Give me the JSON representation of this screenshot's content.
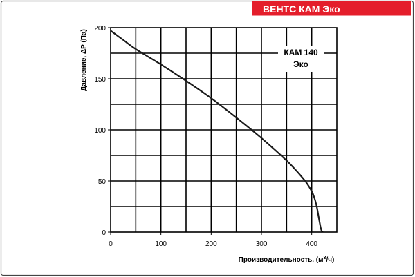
{
  "badge": {
    "text": "ВЕНТС КАМ Эко",
    "color": "#e41e2b",
    "text_color": "#ffffff"
  },
  "chart_data": {
    "type": "line",
    "annotation_lines": [
      "КАМ 140",
      "Эко"
    ],
    "xlabel": "Производительность, (м³/ч)",
    "ylabel": "Давление, ΔP (Па)",
    "xlim": [
      0,
      450
    ],
    "ylim": [
      0,
      200
    ],
    "xticks": [
      0,
      100,
      200,
      300,
      400
    ],
    "yticks": [
      0,
      50,
      100,
      150,
      200
    ],
    "grid": true,
    "grid_x_step": 50,
    "grid_y_step": 25,
    "series": [
      {
        "x": [
          0,
          25,
          50,
          100,
          150,
          200,
          250,
          300,
          350,
          375,
          390,
          400,
          405,
          410,
          413,
          416,
          418,
          420,
          422
        ],
        "y": [
          197,
          188,
          179,
          164,
          148,
          131,
          112,
          92,
          70,
          57,
          48,
          40,
          34,
          25,
          17,
          9,
          4,
          1,
          0
        ],
        "color": "#1a1a1a"
      }
    ]
  }
}
